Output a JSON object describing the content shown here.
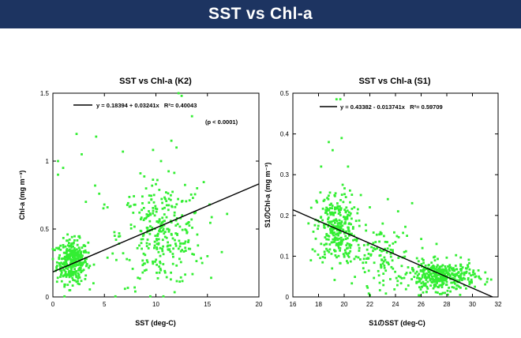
{
  "page": {
    "title": "SST vs Chl-a"
  },
  "chart_data": [
    {
      "type": "scatter",
      "title": "SST vs Chl-a (K2)",
      "xlabel": "SST (deg-C)",
      "ylabel": "Chl-a (mg m⁻³)",
      "xlim": [
        0,
        20
      ],
      "ylim": [
        0,
        1.5
      ],
      "xticks": [
        0,
        5,
        10,
        15,
        20
      ],
      "yticks": [
        0,
        0.5,
        1,
        1.5
      ],
      "xtick_labels": [
        "0",
        "5",
        "10",
        "15",
        "20"
      ],
      "ytick_labels": [
        "0",
        "0.5",
        "1",
        "1.5"
      ],
      "grid": false,
      "point_color": "#33ee33",
      "regression": {
        "intercept": 0.18394,
        "slope": 0.03241,
        "x_range": [
          0,
          20
        ],
        "label": "y = 0.18394 + 0.03241x   R²= 0.40043"
      },
      "annotation": "(p < 0.0001)",
      "clusters": [
        {
          "cx": 1.9,
          "cy": 0.26,
          "sx": 0.75,
          "sy": 0.08,
          "n": 340
        },
        {
          "cx": 10.6,
          "cy": 0.46,
          "sx": 2.0,
          "sy": 0.19,
          "n": 300
        }
      ],
      "series": [
        {
          "values": [
            [
              0.5,
              1.0
            ],
            [
              0.5,
              0.9
            ],
            [
              1.0,
              0.95
            ],
            [
              2.3,
              1.2
            ],
            [
              2.8,
              1.05
            ],
            [
              4.2,
              1.18
            ],
            [
              4.1,
              0.82
            ],
            [
              4.5,
              0.76
            ],
            [
              5.0,
              0.68
            ],
            [
              5.3,
              0.66
            ],
            [
              6.8,
              1.07
            ],
            [
              7.3,
              0.69
            ],
            [
              8.5,
              0.91
            ],
            [
              10.0,
              0.83
            ],
            [
              10.5,
              1.0
            ],
            [
              11.5,
              1.15
            ],
            [
              12.2,
              1.5
            ],
            [
              12.5,
              1.48
            ],
            [
              13.5,
              1.33
            ],
            [
              12.0,
              1.1
            ],
            [
              14.0,
              0.8
            ],
            [
              15.2,
              0.68
            ],
            [
              16.4,
              0.33
            ],
            [
              15.0,
              0.3
            ],
            [
              7.0,
              0.06
            ],
            [
              8.0,
              0.04
            ],
            [
              14.5,
              0.25
            ],
            [
              3.2,
              0.7
            ],
            [
              6.0,
              0.45
            ],
            [
              5.8,
              0.32
            ]
          ]
        }
      ]
    },
    {
      "type": "scatter",
      "title": "SST vs Chl-a (S1)",
      "xlabel": "S1のSST (deg-C)",
      "ylabel": "S1のChl-a (mg m⁻³)",
      "xlim": [
        16,
        32
      ],
      "ylim": [
        0,
        0.5
      ],
      "xticks": [
        16,
        18,
        20,
        22,
        24,
        26,
        28,
        30,
        32
      ],
      "yticks": [
        0,
        0.1,
        0.2,
        0.3,
        0.4,
        0.5
      ],
      "xtick_labels": [
        "16",
        "18",
        "20",
        "22",
        "24",
        "26",
        "28",
        "30",
        "32"
      ],
      "ytick_labels": [
        "0",
        "0.1",
        "0.2",
        "0.3",
        "0.4",
        "0.5"
      ],
      "grid": false,
      "point_color": "#33ee33",
      "regression": {
        "intercept": 0.43382,
        "slope": -0.013741,
        "x_range": [
          16,
          32
        ],
        "label": "y = 0.43382 - 0.013741x   R²= 0.59709"
      },
      "clusters": [
        {
          "cx": 19.4,
          "cy": 0.17,
          "sx": 0.75,
          "sy": 0.045,
          "n": 280
        },
        {
          "cx": 22.6,
          "cy": 0.1,
          "sx": 1.3,
          "sy": 0.035,
          "n": 120
        },
        {
          "cx": 27.6,
          "cy": 0.05,
          "sx": 1.3,
          "sy": 0.018,
          "n": 380
        }
      ],
      "series": [
        {
          "values": [
            [
              19.4,
              0.485
            ],
            [
              19.7,
              0.485
            ],
            [
              19.8,
              0.39
            ],
            [
              18.2,
              0.32
            ],
            [
              18.8,
              0.38
            ],
            [
              19.1,
              0.36
            ],
            [
              20.3,
              0.32
            ],
            [
              21.3,
              0.25
            ],
            [
              23.4,
              0.24
            ],
            [
              24.2,
              0.21
            ],
            [
              25.3,
              0.23
            ],
            [
              24.9,
              0.15
            ],
            [
              27.2,
              0.13
            ],
            [
              23.0,
              0.18
            ],
            [
              26.1,
              0.12
            ],
            [
              22.0,
              0.22
            ],
            [
              17.6,
              0.16
            ],
            [
              17.4,
              0.09
            ],
            [
              31.0,
              0.06
            ],
            [
              30.5,
              0.05
            ]
          ]
        }
      ]
    }
  ]
}
